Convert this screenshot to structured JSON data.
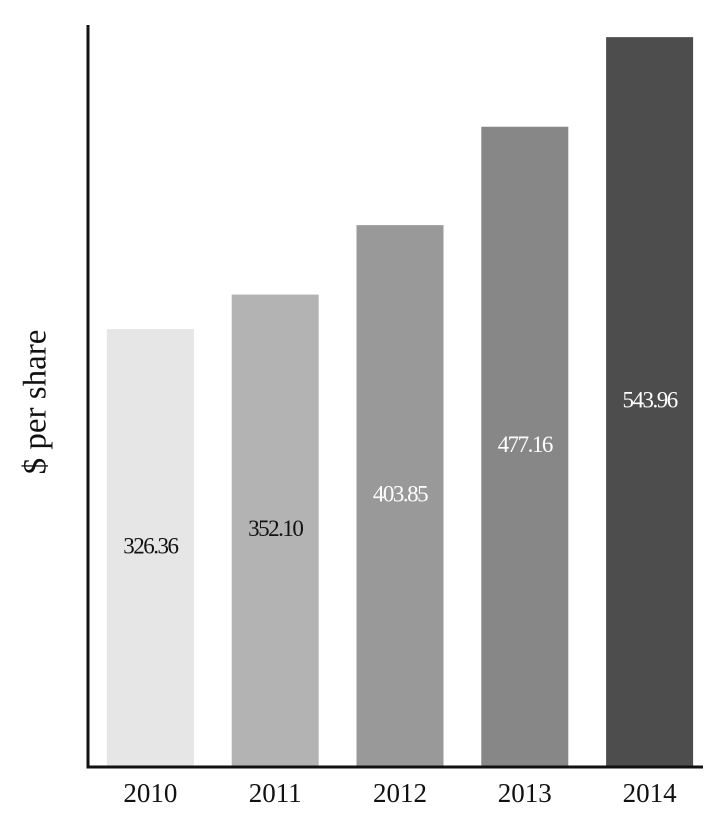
{
  "chart_data": {
    "type": "bar",
    "y_label": "$ per share",
    "categories": [
      "2010",
      "2011",
      "2012",
      "2013",
      "2014"
    ],
    "values": [
      326.36,
      352.1,
      403.85,
      477.16,
      543.96
    ],
    "value_labels": [
      "326.36",
      "352.10",
      "403.85",
      "477.16",
      "543.96"
    ],
    "colors": [
      "#e6e6e6",
      "#b3b3b3",
      "#999999",
      "#878787",
      "#4d4d4d"
    ],
    "label_colors": [
      "#111111",
      "#111111",
      "#ffffff",
      "#ffffff",
      "#ffffff"
    ],
    "ylim": [
      0,
      553
    ],
    "grid": false
  }
}
